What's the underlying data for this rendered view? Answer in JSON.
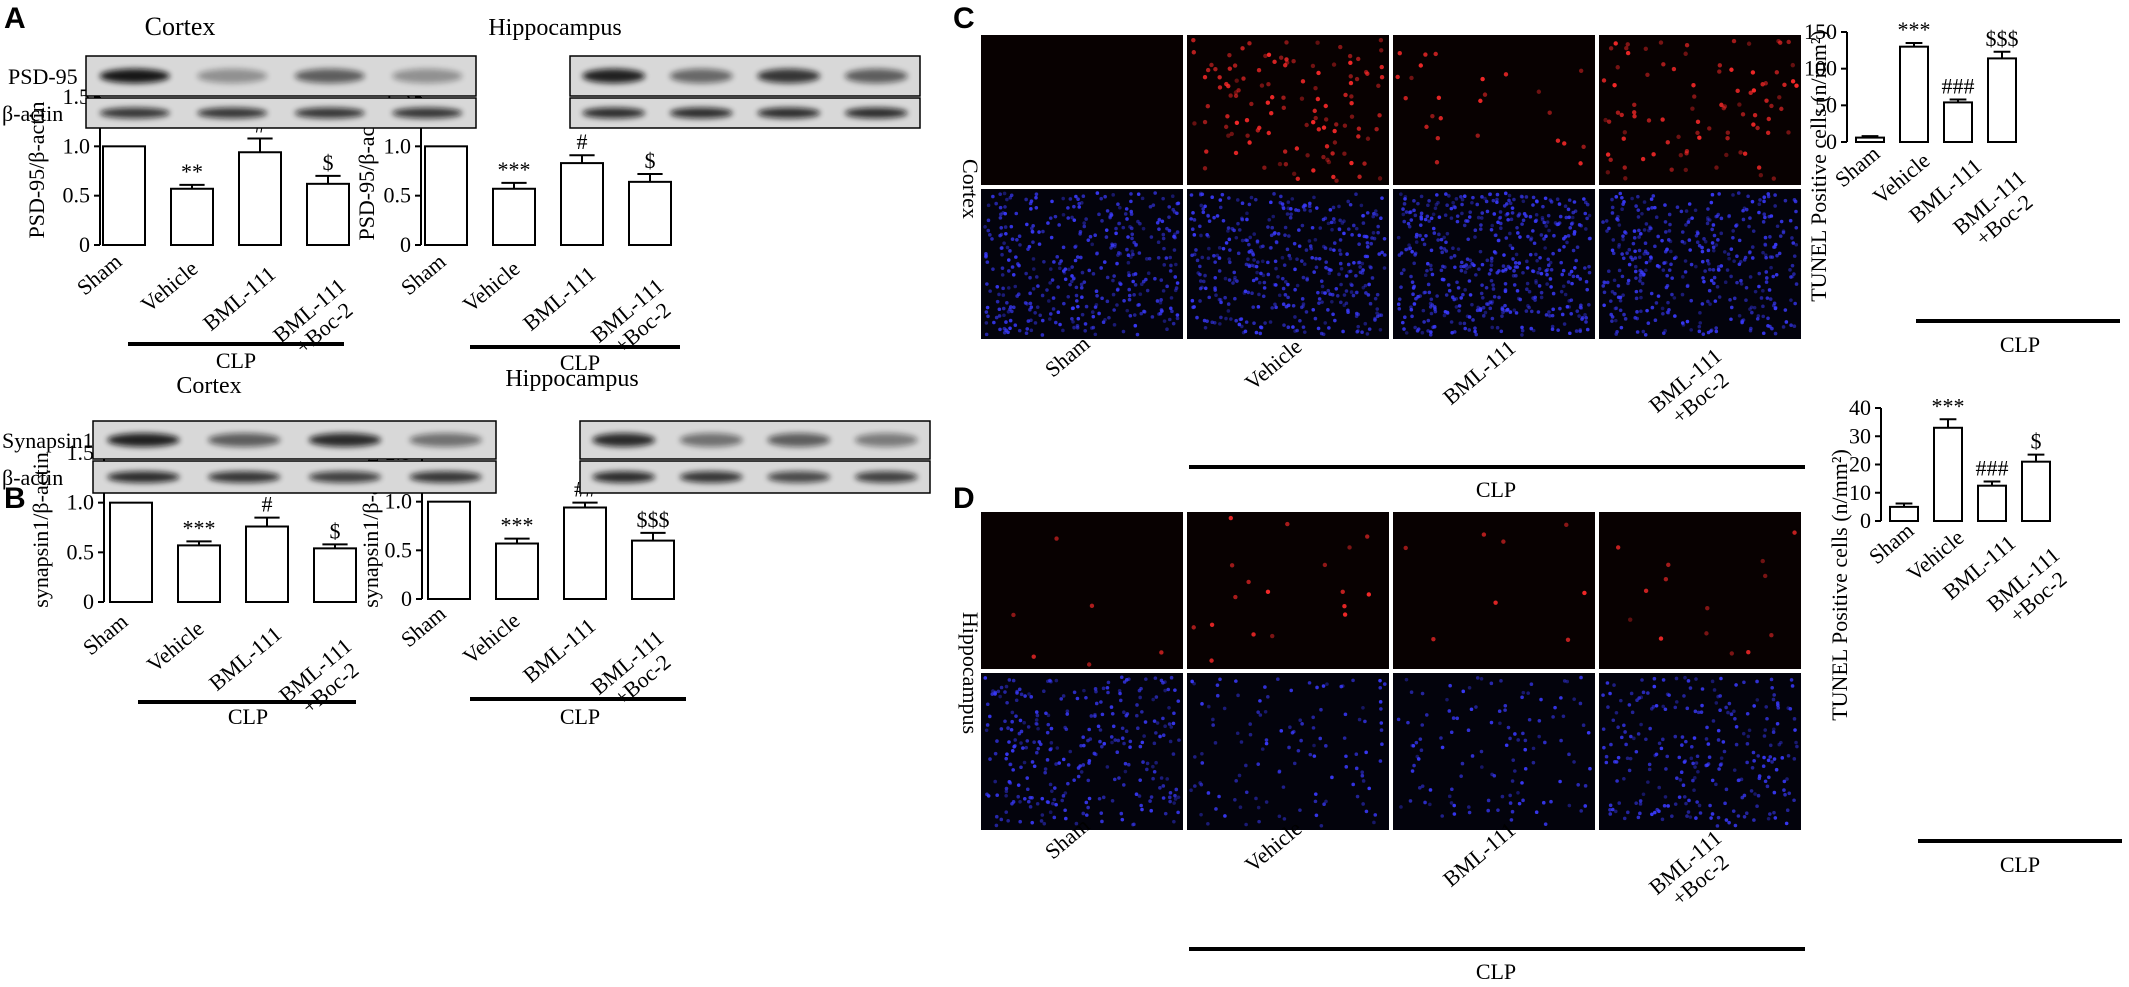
{
  "panels": {
    "A": {
      "letter": "A"
    },
    "B": {
      "letter": "B"
    },
    "C": {
      "letter": "C"
    },
    "D": {
      "letter": "D"
    }
  },
  "group_label": "CLP",
  "chart_data": [
    {
      "id": "A-cortex",
      "type": "bar",
      "title": "Cortex",
      "ylabel": "PSD-95/β-actin",
      "blot_labels": [
        "PSD-95",
        "β-actin"
      ],
      "categories": [
        "Sham",
        "Vehicle",
        "BML-111",
        "BML-111\n+Boc-2"
      ],
      "values": [
        1.0,
        0.57,
        0.94,
        0.62
      ],
      "errors": [
        0,
        0.04,
        0.14,
        0.08
      ],
      "annotations": [
        "",
        "**",
        "#",
        "$"
      ],
      "ylim": [
        0,
        1.5
      ],
      "yticks": [
        "0",
        "0.5",
        "1.0",
        "1.5"
      ],
      "yticks_values": [
        0,
        0.5,
        1.0,
        1.5
      ],
      "group": "CLP"
    },
    {
      "id": "A-hippocampus",
      "type": "bar",
      "title": "Hippocampus",
      "ylabel": "PSD-95/β-actin",
      "blot_labels": [],
      "categories": [
        "Sham",
        "Vehicle",
        "BML-111",
        "BML-111\n+Boc-2"
      ],
      "values": [
        1.0,
        0.57,
        0.83,
        0.64
      ],
      "errors": [
        0,
        0.06,
        0.08,
        0.08
      ],
      "annotations": [
        "",
        "***",
        "#",
        "$"
      ],
      "ylim": [
        0,
        1.5
      ],
      "yticks": [
        "0",
        "0.5",
        "1.0",
        "1.5"
      ],
      "yticks_values": [
        0,
        0.5,
        1.0,
        1.5
      ],
      "group": "CLP"
    },
    {
      "id": "B-cortex",
      "type": "bar",
      "title": "Cortex",
      "ylabel": "synapsin1/β-actin",
      "blot_labels": [
        "Synapsin1",
        "β-actin"
      ],
      "categories": [
        "Sham",
        "Vehicle",
        "BML-111",
        "BML-111\n+Boc-2"
      ],
      "values": [
        1.0,
        0.57,
        0.76,
        0.54
      ],
      "errors": [
        0,
        0.04,
        0.09,
        0.04
      ],
      "annotations": [
        "",
        "***",
        "#",
        "$"
      ],
      "ylim": [
        0,
        1.5
      ],
      "yticks": [
        "0",
        "0.5",
        "1.0",
        "1.5"
      ],
      "yticks_values": [
        0,
        0.5,
        1.0,
        1.5
      ],
      "group": "CLP"
    },
    {
      "id": "B-hippocampus",
      "type": "bar",
      "title": "Hippocampus",
      "ylabel": "synapsin1/β-actin",
      "blot_labels": [],
      "categories": [
        "Sham",
        "Vehicle",
        "BML-111",
        "BML-111\n+Boc-2"
      ],
      "values": [
        1.0,
        0.57,
        0.94,
        0.6
      ],
      "errors": [
        0,
        0.05,
        0.05,
        0.08
      ],
      "annotations": [
        "",
        "***",
        "##",
        "$$$"
      ],
      "ylim": [
        0,
        1.5
      ],
      "yticks": [
        "0",
        "0.5",
        "1.0",
        "1.5"
      ],
      "yticks_values": [
        0,
        0.5,
        1.0,
        1.5
      ],
      "group": "CLP"
    },
    {
      "id": "C-tunel",
      "type": "bar",
      "title": "",
      "ylabel": "TUNEL Positive cells (n/mm²)",
      "blot_labels": [],
      "categories": [
        "Sham",
        "Vehicle",
        "BML-111",
        "BML-111\n+Boc-2"
      ],
      "values": [
        6,
        130,
        54,
        114
      ],
      "errors": [
        2,
        5,
        4,
        9
      ],
      "annotations": [
        "",
        "***",
        "###",
        "$$$"
      ],
      "ylim": [
        0,
        150
      ],
      "yticks": [
        "0",
        "50",
        "100",
        "150"
      ],
      "yticks_values": [
        0,
        50,
        100,
        150
      ],
      "group": "CLP"
    },
    {
      "id": "D-tunel",
      "type": "bar",
      "title": "",
      "ylabel": "TUNEL Positive cells (n/mm²)",
      "blot_labels": [],
      "categories": [
        "Sham",
        "Vehicle",
        "BML-111",
        "BML-111\n+Boc-2"
      ],
      "values": [
        5,
        33,
        12.5,
        21
      ],
      "errors": [
        1.2,
        3,
        1.5,
        2.5
      ],
      "annotations": [
        "",
        "***",
        "###",
        "$"
      ],
      "ylim": [
        0,
        40
      ],
      "yticks": [
        "0",
        "10",
        "20",
        "30",
        "40"
      ],
      "yticks_values": [
        0,
        10,
        20,
        30,
        40
      ],
      "group": "CLP"
    }
  ],
  "micrographs": {
    "C": {
      "region_label": "Cortex",
      "columns": [
        "Sham",
        "Vehicle",
        "BML-111",
        "BML-111\n+Boc-2"
      ],
      "group": "CLP"
    },
    "D": {
      "region_label": "Hippocampus",
      "columns": [
        "Sham",
        "Vehicle",
        "BML-111",
        "BML-111\n+Boc-2"
      ],
      "group": "CLP"
    }
  },
  "colors": {
    "bar_fill": "#ffffff",
    "bar_stroke": "#000000",
    "red_channel": "#ff2a2a",
    "blue_channel": "#3a3aff",
    "micro_bg": "#050505"
  }
}
